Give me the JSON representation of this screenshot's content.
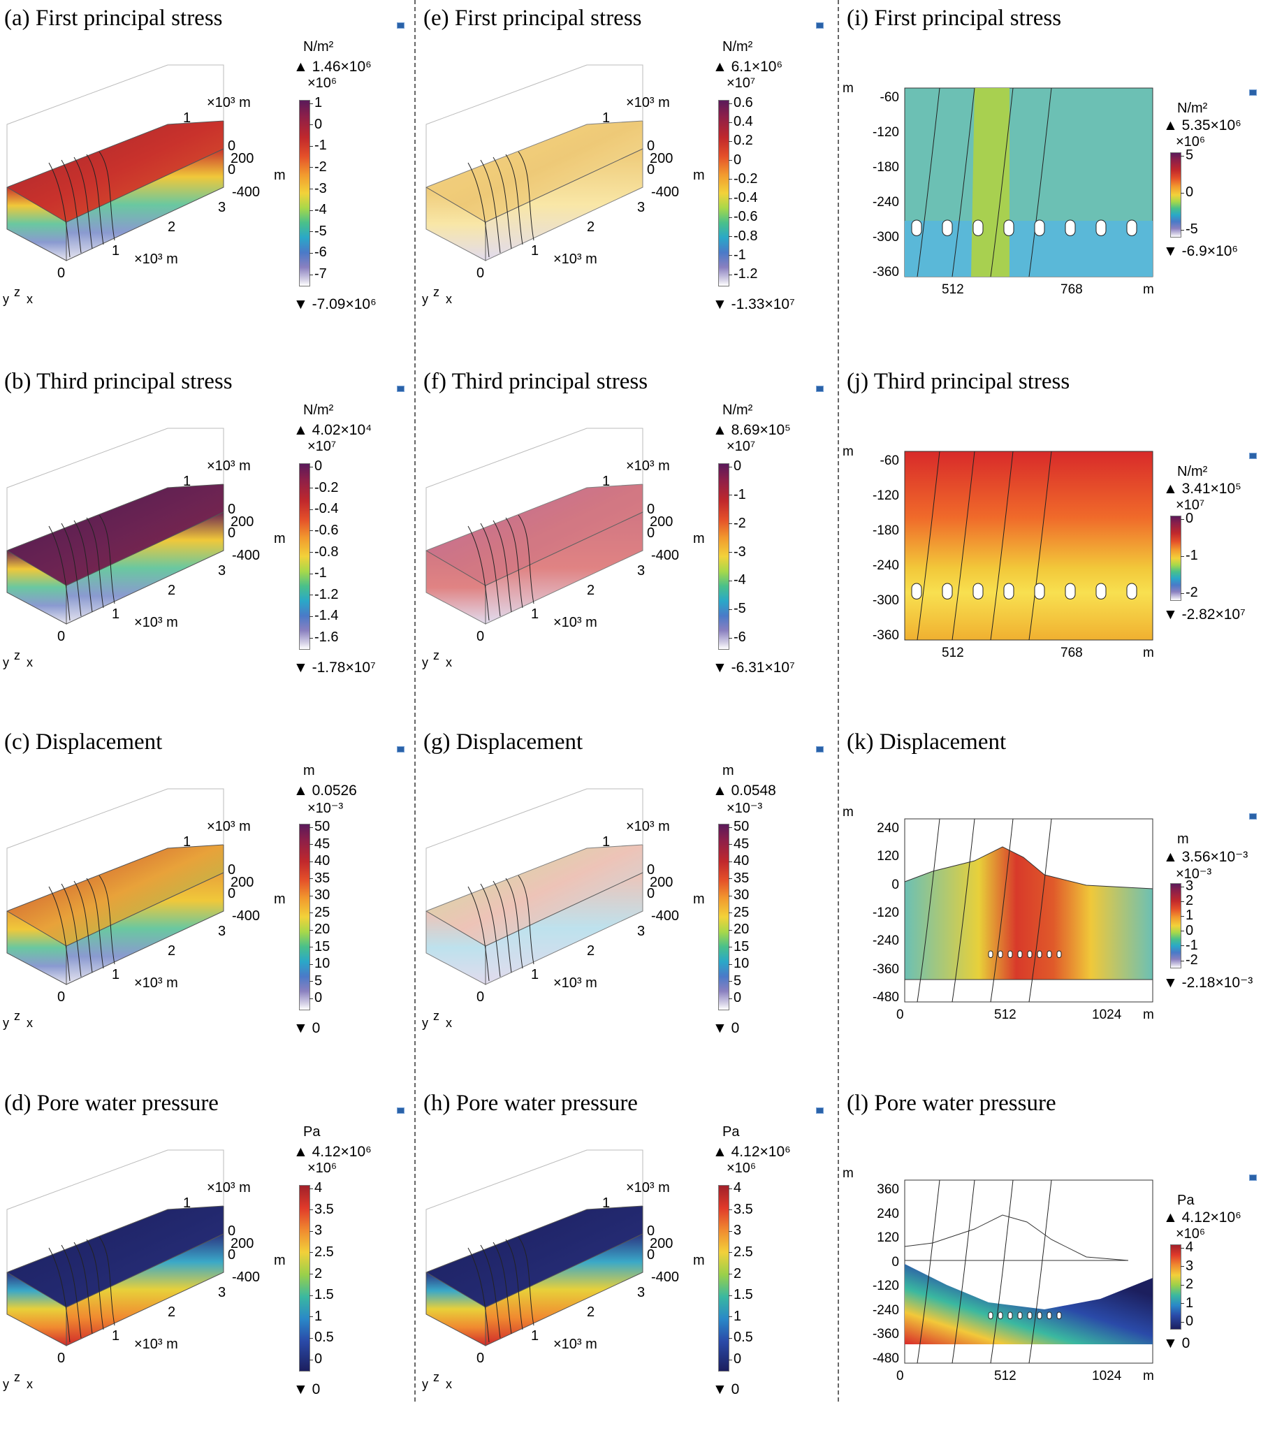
{
  "figure": {
    "columns": [
      {
        "panels": [
          {
            "title": "(a) First principal stress",
            "unit": "N/m²",
            "max": "1.46×10⁶",
            "multiplier": "×10⁶",
            "ticks": [
              "1",
              "0",
              "-1",
              "-2",
              "-3",
              "-4",
              "-5",
              "-6",
              "-7"
            ],
            "min": "-7.09×10⁶",
            "colormap": "rainbow",
            "fill": [
              "#a3252f",
              "#c9322c",
              "#e0642a"
            ]
          },
          {
            "title": "(b) Third principal stress",
            "unit": "N/m²",
            "max": "4.02×10⁴",
            "multiplier": "×10⁷",
            "ticks": [
              "0",
              "-0.2",
              "-0.4",
              "-0.6",
              "-0.8",
              "-1",
              "-1.2",
              "-1.4",
              "-1.6"
            ],
            "min": "-1.78×10⁷",
            "colormap": "rainbow",
            "fill": [
              "#4a1a52",
              "#6a2352",
              "#8a2a4a"
            ]
          },
          {
            "title": "(c) Displacement",
            "unit": "m",
            "max": "0.0526",
            "multiplier": "×10⁻³",
            "ticks": [
              "50",
              "45",
              "40",
              "35",
              "30",
              "25",
              "20",
              "15",
              "10",
              "5",
              "0"
            ],
            "min": "0",
            "colormap": "rainbow",
            "fill": [
              "#c23a2a",
              "#e8a23a",
              "#8ccf5a"
            ]
          },
          {
            "title": "(d) Pore water pressure",
            "unit": "Pa",
            "max": "4.12×10⁶",
            "multiplier": "×10⁶",
            "ticks": [
              "4",
              "3.5",
              "3",
              "2.5",
              "2",
              "1.5",
              "1",
              "0.5",
              "0"
            ],
            "min": "0",
            "colormap": "pore",
            "fill": [
              "#1c1f5e",
              "#22286e",
              "#2c3380"
            ]
          }
        ],
        "axes": {
          "x_unit": "×10³ m",
          "y_unit": "×10³ m",
          "z_unit": "m",
          "x_ticks": [
            "0",
            "1",
            "2",
            "3"
          ],
          "y_ticks": [
            "1",
            "0"
          ],
          "z_ticks": [
            "200",
            "0",
            "-400"
          ],
          "triad": [
            "y",
            "z",
            "x"
          ]
        }
      },
      {
        "panels": [
          {
            "title": "(e) First principal stress",
            "unit": "N/m²",
            "max": "6.1×10⁶",
            "multiplier": "×10⁷",
            "ticks": [
              "0.6",
              "0.4",
              "0.2",
              "0",
              "-0.2",
              "-0.4",
              "-0.6",
              "-0.8",
              "-1",
              "-1.2"
            ],
            "min": "-1.33×10⁷",
            "colormap": "rainbow",
            "fill": [
              "#f2c85a",
              "#e9b84a",
              "#f7df8a"
            ]
          },
          {
            "title": "(f) Third principal stress",
            "unit": "N/m²",
            "max": "8.69×10⁵",
            "multiplier": "×10⁷",
            "ticks": [
              "0",
              "-1",
              "-2",
              "-3",
              "-4",
              "-5",
              "-6"
            ],
            "min": "-6.31×10⁷",
            "colormap": "rainbow",
            "fill": [
              "#a83a78",
              "#c24a5a",
              "#d65a5a"
            ]
          },
          {
            "title": "(g) Displacement",
            "unit": "m",
            "max": "0.0548",
            "multiplier": "×10⁻³",
            "ticks": [
              "50",
              "45",
              "40",
              "35",
              "30",
              "25",
              "20",
              "15",
              "10",
              "5",
              "0"
            ],
            "min": "0",
            "colormap": "rainbow",
            "fill": [
              "#b9d87a",
              "#e8b0a0",
              "#a8d8e8"
            ]
          },
          {
            "title": "(h) Pore water pressure",
            "unit": "Pa",
            "max": "4.12×10⁶",
            "multiplier": "×10⁶",
            "ticks": [
              "4",
              "3.5",
              "3",
              "2.5",
              "2",
              "1.5",
              "1",
              "0.5",
              "0"
            ],
            "min": "0",
            "colormap": "pore",
            "fill": [
              "#1c1f5e",
              "#22286e",
              "#2c3380"
            ]
          }
        ]
      },
      {
        "panels": [
          {
            "title": "(i) First principal stress",
            "unit": "N/m²",
            "max": "5.35×10⁶",
            "multiplier": "×10⁶",
            "ticks": [
              "5",
              "0",
              "-5"
            ],
            "min": "-6.9×10⁶",
            "y_ticks": [
              "-60",
              "-120",
              "-180",
              "-240",
              "-300",
              "-360"
            ],
            "x_ticks": [
              "512",
              "768"
            ]
          },
          {
            "title": "(j) Third principal stress",
            "unit": "N/m²",
            "max": "3.41×10⁵",
            "multiplier": "×10⁷",
            "ticks": [
              "0",
              "-1",
              "-2"
            ],
            "min": "-2.82×10⁷",
            "y_ticks": [
              "-60",
              "-120",
              "-180",
              "-240",
              "-300",
              "-360"
            ],
            "x_ticks": [
              "512",
              "768"
            ]
          },
          {
            "title": "(k) Displacement",
            "unit": "m",
            "max": "3.56×10⁻³",
            "multiplier": "×10⁻³",
            "ticks": [
              "3",
              "2",
              "1",
              "0",
              "-1",
              "-2"
            ],
            "min": "-2.18×10⁻³",
            "y_ticks": [
              "240",
              "120",
              "0",
              "-120",
              "-240",
              "-360",
              "-480"
            ],
            "x_ticks": [
              "0",
              "512",
              "1024"
            ]
          },
          {
            "title": "(l) Pore water pressure",
            "unit": "Pa",
            "max": "4.12×10⁶",
            "multiplier": "×10⁶",
            "ticks": [
              "4",
              "3",
              "2",
              "1",
              "0"
            ],
            "min": "0",
            "y_ticks": [
              "360",
              "240",
              "120",
              "0",
              "-120",
              "-240",
              "-360",
              "-480"
            ],
            "x_ticks": [
              "0",
              "512",
              "1024"
            ]
          }
        ],
        "axis_unit": "m"
      }
    ]
  }
}
